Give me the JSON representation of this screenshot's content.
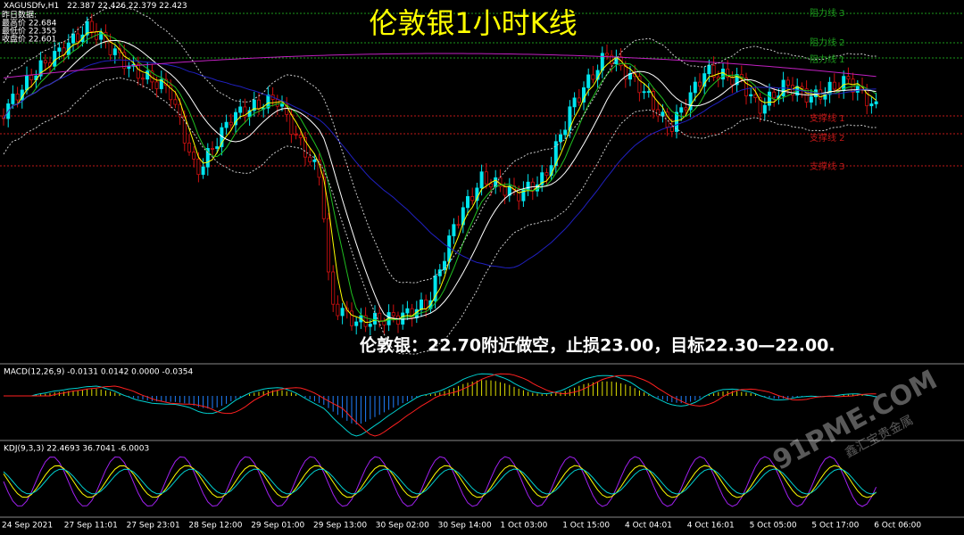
{
  "header": {
    "symbol": "XAGUSDfv,H1",
    "ohlc": "22.387 22.426 22.379 22.423",
    "info_title": "昨日数据:",
    "info": [
      "最高价 22.684",
      "最低价 22.355",
      "收盘价 22.601"
    ]
  },
  "title": "伦敦银1小时K线",
  "levels": {
    "resistance": [
      "阻力线 3",
      "阻力线 2",
      "阻力线 1"
    ],
    "support": [
      "支撑线 1",
      "支撑线 2",
      "支撑线 3"
    ]
  },
  "annotation": "伦敦银：22.70附近做空，止损23.00，目标22.30—22.00.",
  "macd": {
    "label": "MACD(12,26,9) -0.0131 0.0142 0.0000 -0.0354"
  },
  "kdj": {
    "label": "KDJ(9,3,3) 22.4693 36.7041 -6.0003"
  },
  "x_labels": [
    "24 Sep 2021",
    "27 Sep 11:01",
    "27 Sep 23:01",
    "28 Sep 12:00",
    "29 Sep 01:00",
    "29 Sep 13:00",
    "30 Sep 02:00",
    "30 Sep 14:00",
    "1 Oct 03:00",
    "1 Oct 15:00",
    "4 Oct 04:01",
    "4 Oct 16:01",
    "5 Oct 05:00",
    "5 Oct 17:00",
    "6 Oct 06:00"
  ],
  "watermark": "91PME.COM",
  "watermark_sub": "鑫汇宝贵金属"
}
